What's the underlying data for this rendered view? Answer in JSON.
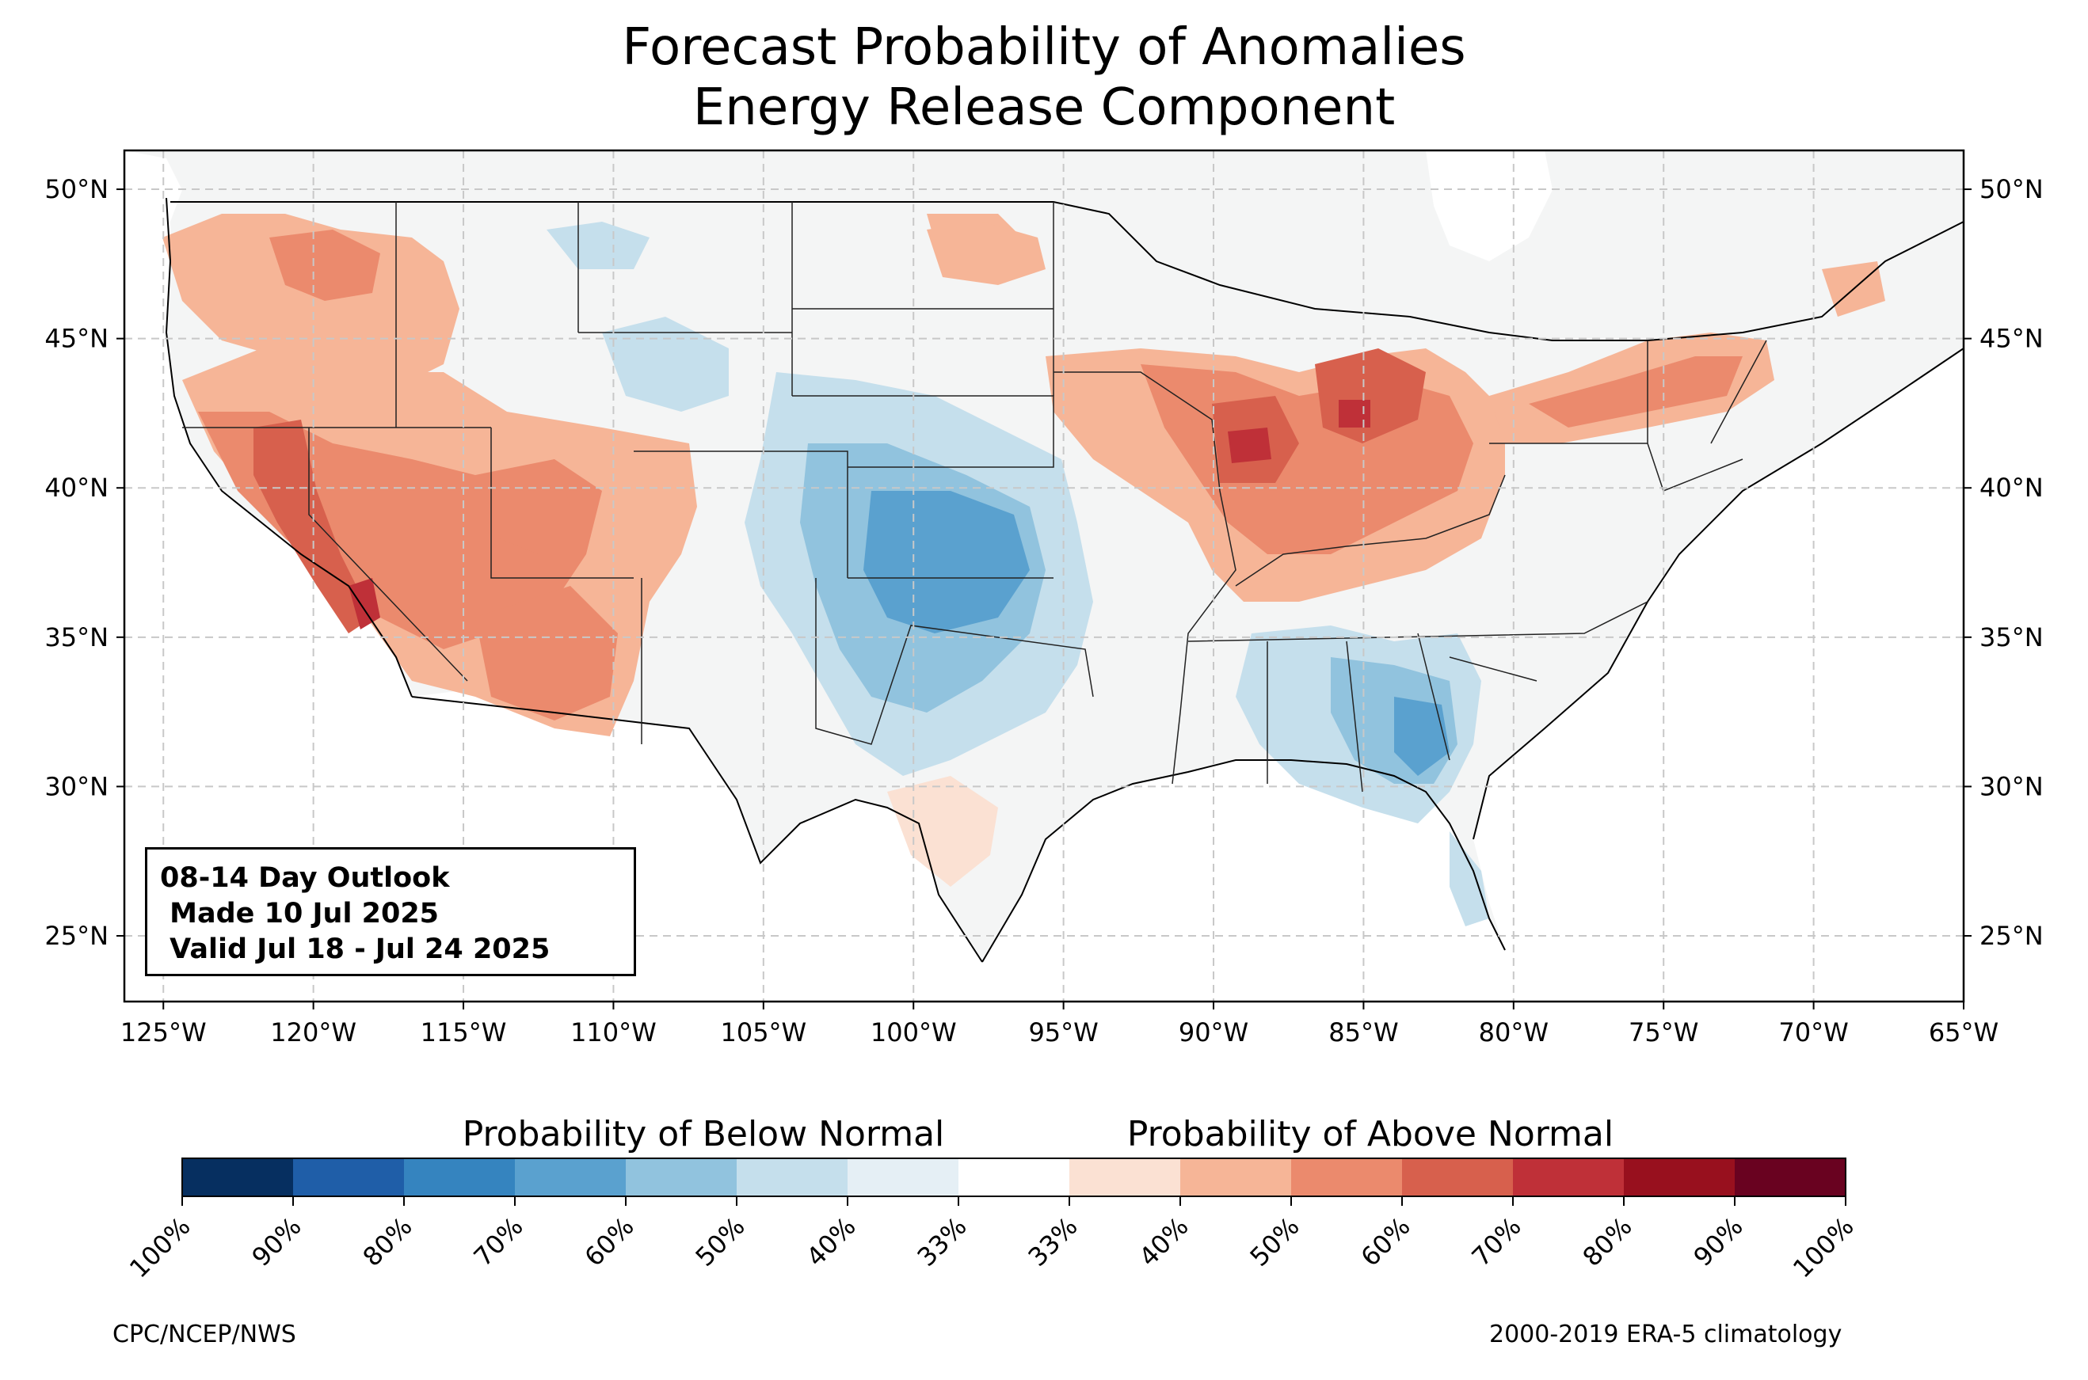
{
  "title": {
    "line1": "Forecast Probability of Anomalies",
    "line2": "Energy Release Component"
  },
  "outlook_box": {
    "line1": "08-14 Day Outlook",
    "line2": " Made 10 Jul 2025",
    "line3": " Valid Jul 18 - Jul 24 2025"
  },
  "map": {
    "lon_range": [
      -126.3,
      -65
    ],
    "lat_range": [
      22.8,
      51.3
    ],
    "lon_ticks": [
      "125°W",
      "120°W",
      "115°W",
      "110°W",
      "105°W",
      "100°W",
      "95°W",
      "90°W",
      "85°W",
      "80°W",
      "75°W",
      "70°W",
      "65°W"
    ],
    "lon_tick_values": [
      -125,
      -120,
      -115,
      -110,
      -105,
      -100,
      -95,
      -90,
      -85,
      -80,
      -75,
      -70,
      -65
    ],
    "lat_ticks": [
      "25°N",
      "30°N",
      "35°N",
      "40°N",
      "45°N",
      "50°N"
    ],
    "lat_tick_values": [
      25,
      30,
      35,
      40,
      45,
      50
    ],
    "gridlines": true,
    "land_color": "#f4f5f5",
    "anomaly_regions": [
      {
        "area": "Pacific Northwest",
        "category": "above",
        "level": "40-60%"
      },
      {
        "area": "Great Basin / Nevada / California",
        "category": "above",
        "level": "50-80%"
      },
      {
        "area": "Southwest / Arizona",
        "category": "above",
        "level": "50-70%"
      },
      {
        "area": "Utah / Colorado Plateau",
        "category": "above",
        "level": "50-70%"
      },
      {
        "area": "Upper Midwest / Illinois / Indiana / Michigan",
        "category": "above",
        "level": "50-80%"
      },
      {
        "area": "Ohio Valley / Pennsylvania / New York",
        "category": "above",
        "level": "40-60%"
      },
      {
        "area": "Montana / North Dakota border",
        "category": "above",
        "level": "33-50%"
      },
      {
        "area": "Central Plains / Kansas / Oklahoma",
        "category": "below",
        "level": "40-70%"
      },
      {
        "area": "Southeast / Georgia / Alabama",
        "category": "below",
        "level": "40-70%"
      },
      {
        "area": "Wyoming / Northern Rockies",
        "category": "below",
        "level": "33-50%"
      }
    ]
  },
  "colorbar": {
    "below_label": "Probability of Below Normal",
    "above_label": "Probability of Above Normal",
    "colors": [
      "#062f60",
      "#1f5ea8",
      "#3584bf",
      "#5aa1cf",
      "#91c3de",
      "#c5dfec",
      "#e5eff5",
      "#ffffff",
      "#fbe1d3",
      "#f6b597",
      "#eb8a6d",
      "#d7604d",
      "#bf3038",
      "#98101e",
      "#690220"
    ],
    "tick_labels": [
      "100%",
      "90%",
      "80%",
      "70%",
      "60%",
      "50%",
      "40%",
      "33%",
      "33%",
      "40%",
      "50%",
      "60%",
      "70%",
      "80%",
      "90%",
      "100%"
    ]
  },
  "footer": {
    "left": "CPC/NCEP/NWS",
    "right": "2000-2019 ERA-5 climatology"
  },
  "colors": {
    "above_light": "#fbe1d3",
    "above_mid": "#eb8a6d",
    "above_high": "#d7604d",
    "above_peak": "#bf3038",
    "below_light": "#c5dfec",
    "below_mid": "#91c3de",
    "below_high": "#5aa1cf"
  }
}
